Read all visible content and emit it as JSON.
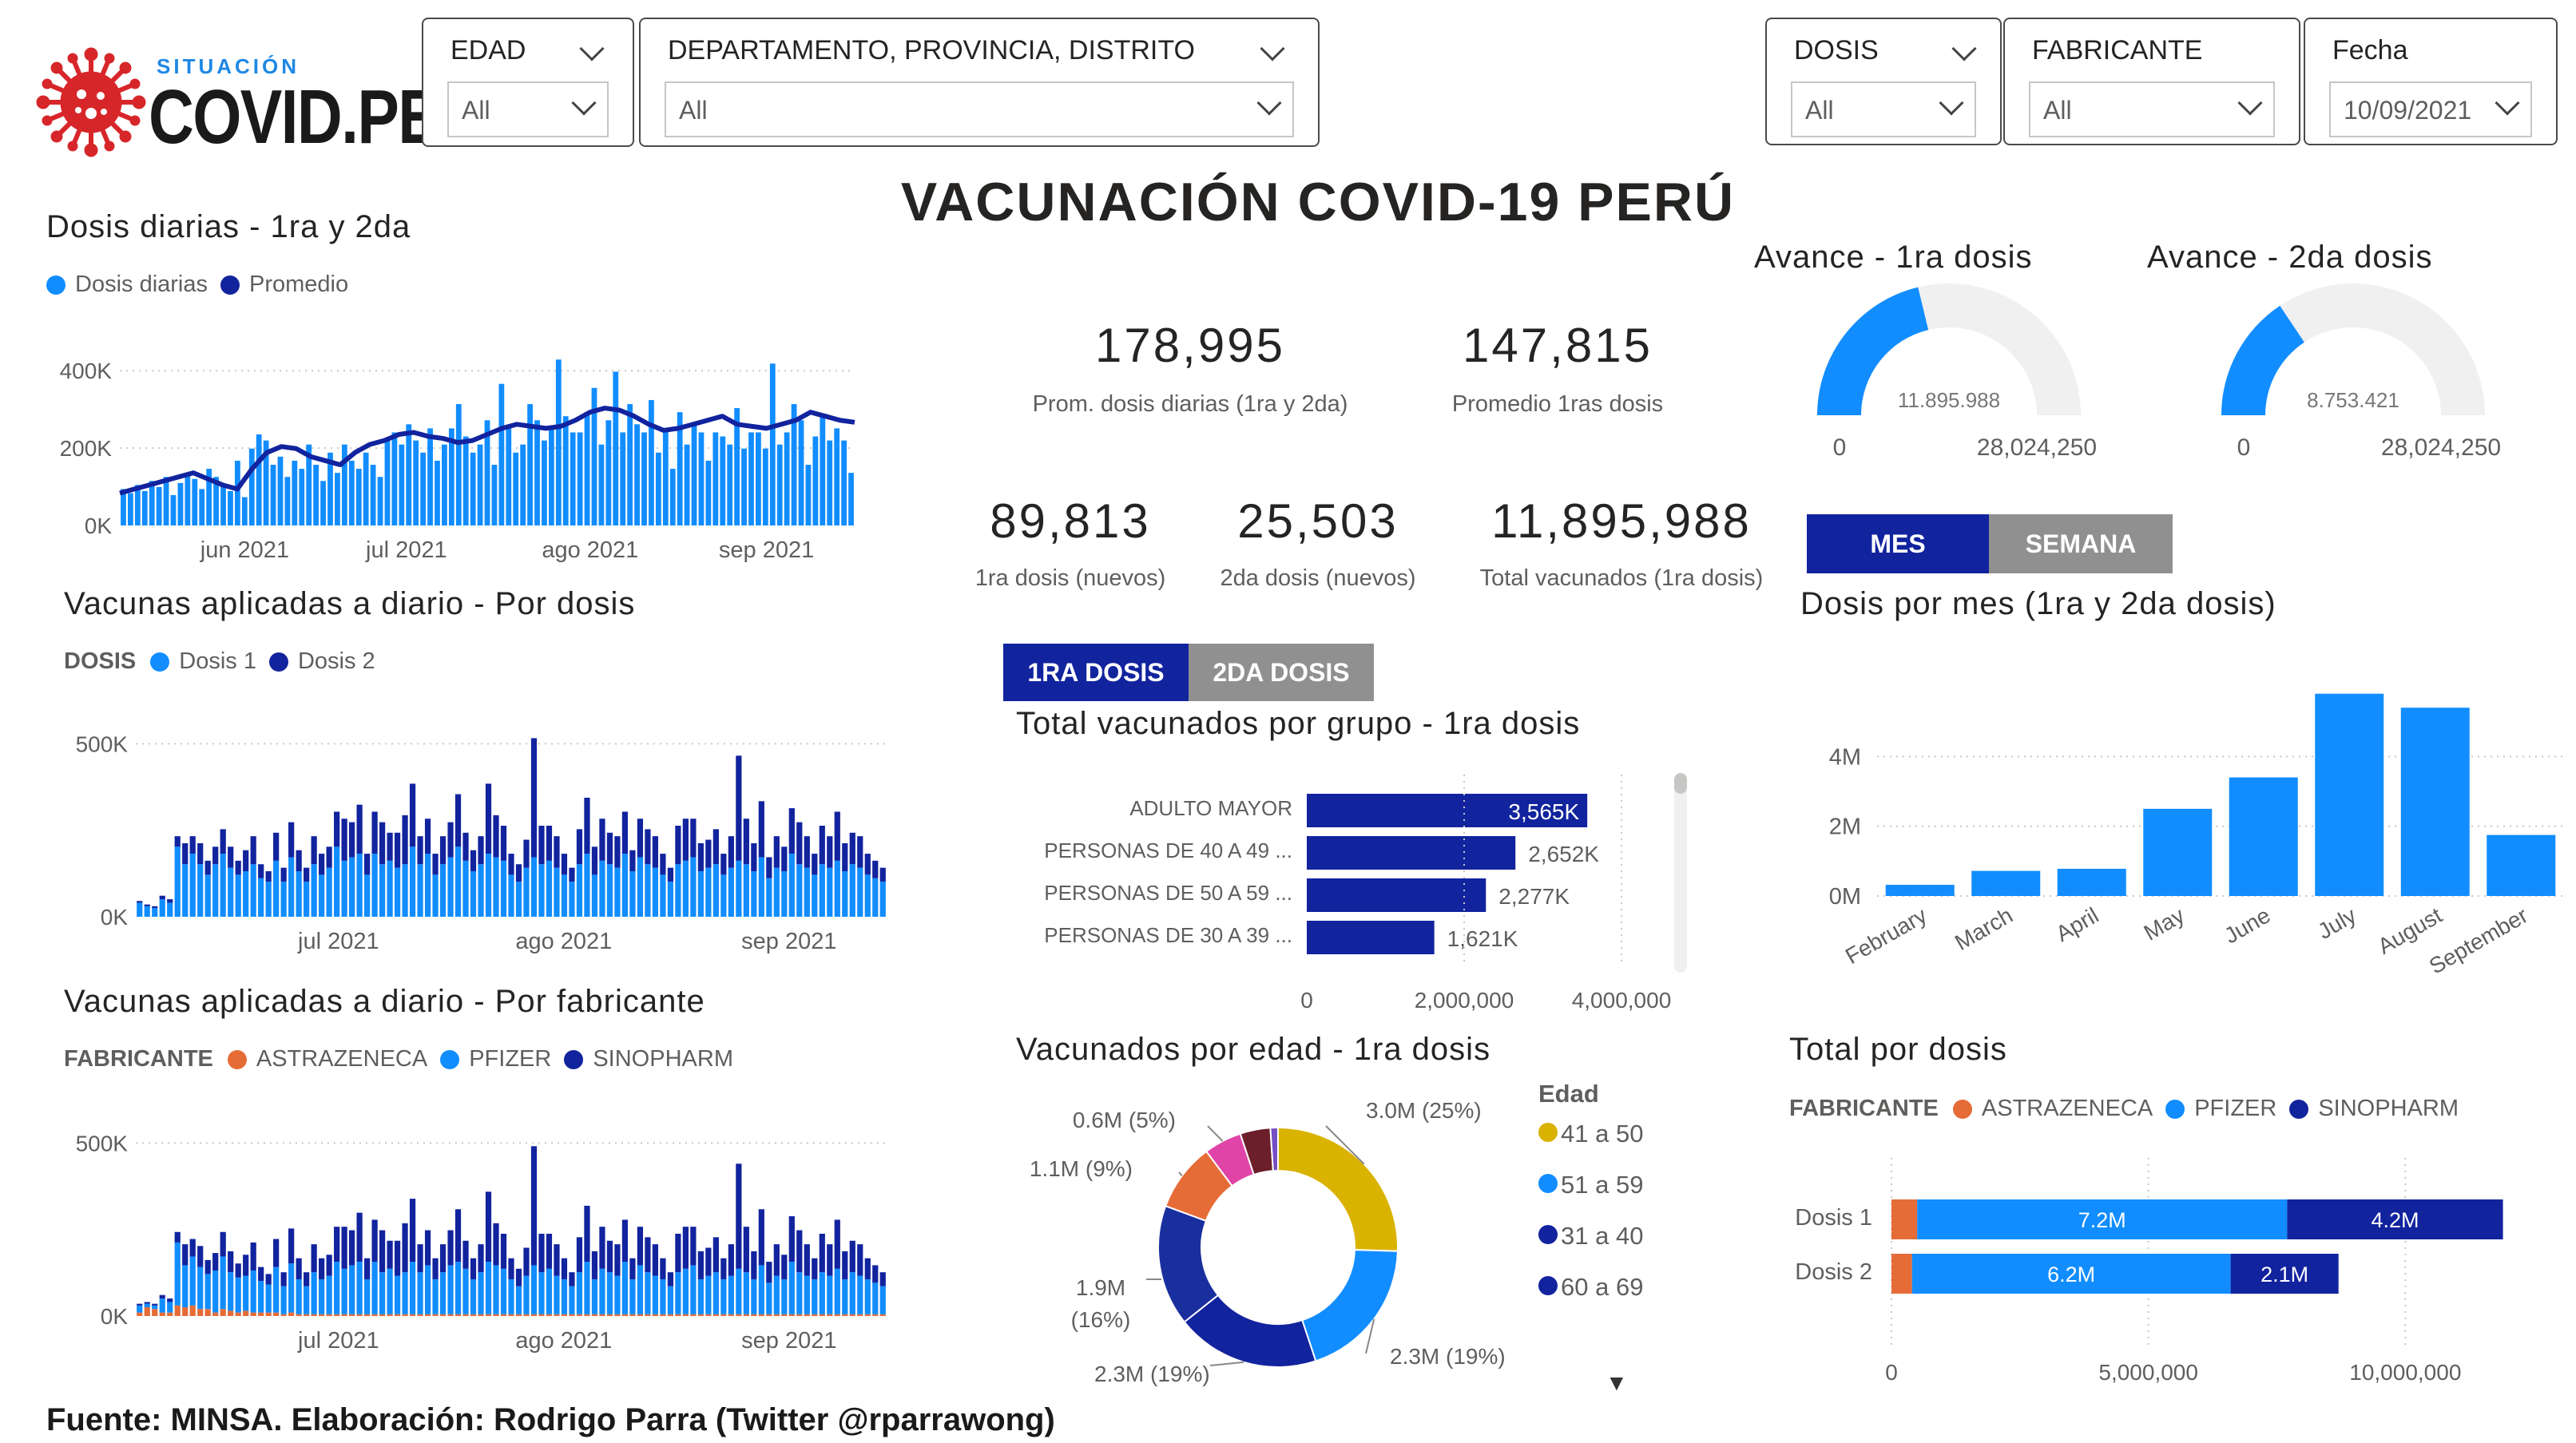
{
  "logo": {
    "top": "SITUACIÓN",
    "main": "COVID.PE"
  },
  "slicers": {
    "edad": {
      "label": "EDAD",
      "value": "All"
    },
    "region": {
      "label": "DEPARTAMENTO, PROVINCIA, DISTRITO",
      "value": "All"
    },
    "dosis": {
      "label": "DOSIS",
      "value": "All"
    },
    "fabricante": {
      "label": "FABRICANTE",
      "value": "All"
    },
    "fecha": {
      "label": "Fecha",
      "value": "10/09/2021"
    }
  },
  "main_title": "VACUNACIÓN COVID-19 PERÚ",
  "kpis": [
    {
      "value": "178,995",
      "label": "Prom. dosis diarias (1ra y 2da)"
    },
    {
      "value": "147,815",
      "label": "Promedio 1ras dosis"
    },
    {
      "value": "89,813",
      "label": "1ra dosis (nuevos)"
    },
    {
      "value": "25,503",
      "label": "2da dosis (nuevos)"
    },
    {
      "value": "11,895,988",
      "label": "Total vacunados (1ra dosis)"
    }
  ],
  "tabs_dosis": {
    "first": "1RA DOSIS",
    "second": "2DA DOSIS"
  },
  "tabs_periodo": {
    "mes": "MES",
    "semana": "SEMANA"
  },
  "colors": {
    "light_blue": "#118DFF",
    "dark_blue": "#12239E",
    "orange": "#E66C37",
    "gold": "#D9B300",
    "magenta": "#E044A7",
    "maroon": "#744EC2",
    "gauge_bg": "#F0F0F0",
    "tab_active": "#12239E",
    "tab_inactive": "#909090"
  },
  "footer": "Fuente: MINSA. Elaboración: Rodrigo Parra (Twitter @rparrawong)",
  "scroll_arrow": "▼",
  "chart_data": [
    {
      "id": "dosis_diarias",
      "type": "bar",
      "title": "Dosis diarias - 1ra y 2da",
      "legend": [
        "Dosis diarias",
        "Promedio"
      ],
      "yticks": [
        "0K",
        "200K",
        "400K"
      ],
      "ylim": [
        0,
        450000
      ],
      "xticks": [
        "jun 2021",
        "jul 2021",
        "ago 2021",
        "sep 2021"
      ],
      "series": [
        {
          "name": "Dosis diarias",
          "values": [
            90000,
            80000,
            100000,
            85000,
            110000,
            95000,
            120000,
            75000,
            105000,
            130000,
            115000,
            90000,
            140000,
            120000,
            100000,
            85000,
            160000,
            70000,
            190000,
            225000,
            210000,
            150000,
            170000,
            120000,
            160000,
            140000,
            200000,
            150000,
            110000,
            180000,
            130000,
            200000,
            160000,
            140000,
            180000,
            150000,
            120000,
            210000,
            230000,
            200000,
            250000,
            210000,
            180000,
            240000,
            160000,
            200000,
            240000,
            300000,
            220000,
            180000,
            200000,
            260000,
            150000,
            350000,
            240000,
            180000,
            200000,
            300000,
            260000,
            210000,
            240000,
            410000,
            270000,
            230000,
            230000,
            280000,
            340000,
            200000,
            260000,
            380000,
            230000,
            300000,
            250000,
            230000,
            310000,
            180000,
            240000,
            140000,
            280000,
            200000,
            250000,
            230000,
            160000,
            230000,
            220000,
            200000,
            290000,
            190000,
            230000,
            230000,
            190000,
            400000,
            200000,
            230000,
            300000,
            260000,
            150000,
            220000,
            270000,
            210000,
            240000,
            210000,
            130000
          ],
          "type": "bar"
        },
        {
          "name": "Promedio",
          "values": [
            80000,
            90000,
            100000,
            110000,
            120000,
            130000,
            115000,
            100000,
            90000,
            140000,
            180000,
            195000,
            190000,
            170000,
            160000,
            150000,
            180000,
            200000,
            210000,
            225000,
            230000,
            220000,
            215000,
            205000,
            210000,
            225000,
            240000,
            250000,
            245000,
            240000,
            245000,
            260000,
            280000,
            290000,
            285000,
            270000,
            250000,
            235000,
            240000,
            250000,
            260000,
            270000,
            250000,
            245000,
            240000,
            250000,
            260000,
            280000,
            270000,
            260000,
            255000
          ],
          "type": "line"
        }
      ]
    },
    {
      "id": "por_dosis",
      "type": "bar",
      "title": "Vacunas aplicadas a diario - Por dosis",
      "legend_title": "DOSIS",
      "legend": [
        "Dosis 1",
        "Dosis 2"
      ],
      "yticks": [
        "0K",
        "500K"
      ],
      "ylim": [
        0,
        520000
      ],
      "xticks": [
        "jul 2021",
        "ago 2021",
        "sep 2021"
      ],
      "series": [
        {
          "name": "Dosis 1",
          "values": [
            40000,
            30000,
            25000,
            50000,
            40000,
            200000,
            150000,
            180000,
            150000,
            120000,
            150000,
            180000,
            140000,
            120000,
            130000,
            150000,
            110000,
            100000,
            160000,
            100000,
            170000,
            130000,
            100000,
            150000,
            120000,
            140000,
            200000,
            160000,
            170000,
            180000,
            120000,
            180000,
            150000,
            160000,
            140000,
            150000,
            200000,
            150000,
            180000,
            120000,
            150000,
            170000,
            200000,
            160000,
            130000,
            150000,
            180000,
            170000,
            160000,
            120000,
            100000,
            140000,
            170000,
            150000,
            160000,
            140000,
            120000,
            100000,
            150000,
            180000,
            120000,
            160000,
            150000,
            140000,
            180000,
            130000,
            170000,
            150000,
            140000,
            120000,
            100000,
            150000,
            160000,
            170000,
            130000,
            140000,
            150000,
            120000,
            140000,
            160000,
            150000,
            130000,
            170000,
            110000,
            140000,
            130000,
            180000,
            150000,
            140000,
            120000,
            150000,
            140000,
            160000,
            130000,
            150000,
            140000,
            120000,
            110000,
            100000
          ]
        },
        {
          "name": "Dosis 2",
          "values": [
            5000,
            5000,
            5000,
            10000,
            10000,
            30000,
            60000,
            50000,
            60000,
            40000,
            50000,
            70000,
            60000,
            40000,
            60000,
            80000,
            40000,
            30000,
            80000,
            40000,
            100000,
            60000,
            40000,
            80000,
            60000,
            60000,
            100000,
            120000,
            100000,
            140000,
            60000,
            120000,
            120000,
            80000,
            100000,
            140000,
            180000,
            80000,
            100000,
            60000,
            80000,
            100000,
            150000,
            80000,
            60000,
            80000,
            200000,
            120000,
            100000,
            60000,
            50000,
            80000,
            340000,
            110000,
            100000,
            90000,
            60000,
            40000,
            100000,
            160000,
            80000,
            120000,
            90000,
            90000,
            120000,
            60000,
            110000,
            100000,
            90000,
            60000,
            40000,
            110000,
            120000,
            110000,
            80000,
            80000,
            100000,
            60000,
            90000,
            300000,
            130000,
            80000,
            160000,
            60000,
            90000,
            70000,
            130000,
            120000,
            90000,
            60000,
            110000,
            90000,
            140000,
            80000,
            90000,
            90000,
            60000,
            50000,
            40000
          ]
        }
      ]
    },
    {
      "id": "por_fabricante",
      "type": "bar",
      "title": "Vacunas aplicadas a diario - Por fabricante",
      "legend_title": "FABRICANTE",
      "legend": [
        "ASTRAZENECA",
        "PFIZER",
        "SINOPHARM"
      ],
      "yticks": [
        "0K",
        "500K"
      ],
      "ylim": [
        0,
        520000
      ],
      "xticks": [
        "jul 2021",
        "ago 2021",
        "sep 2021"
      ],
      "series": [
        {
          "name": "ASTRAZENECA",
          "values": [
            10000,
            25000,
            20000,
            10000,
            10000,
            30000,
            25000,
            30000,
            20000,
            20000,
            10000,
            20000,
            15000,
            10000,
            15000,
            10000,
            10000,
            10000,
            10000,
            5000,
            10000,
            5000,
            5000,
            5000,
            5000,
            5000,
            5000,
            5000,
            5000,
            5000,
            5000,
            5000,
            5000,
            5000,
            5000,
            5000,
            5000,
            5000,
            5000,
            5000,
            5000,
            5000,
            5000,
            5000,
            5000,
            5000,
            5000,
            5000,
            5000,
            5000,
            5000,
            5000,
            5000,
            5000,
            5000,
            5000,
            5000,
            5000,
            5000,
            5000,
            5000,
            5000,
            5000,
            5000,
            5000,
            5000,
            5000,
            5000,
            5000,
            5000,
            5000,
            5000,
            5000,
            5000,
            5000,
            5000,
            5000,
            5000,
            5000,
            5000,
            5000,
            5000,
            5000,
            5000,
            5000,
            5000,
            5000,
            5000,
            5000,
            5000,
            5000,
            5000,
            5000,
            5000,
            5000,
            5000,
            5000,
            5000,
            5000
          ]
        },
        {
          "name": "PFIZER",
          "values": [
            20000,
            10000,
            10000,
            40000,
            30000,
            180000,
            120000,
            140000,
            120000,
            100000,
            120000,
            150000,
            110000,
            100000,
            100000,
            120000,
            90000,
            80000,
            130000,
            80000,
            140000,
            100000,
            80000,
            120000,
            100000,
            110000,
            150000,
            130000,
            140000,
            150000,
            100000,
            150000,
            120000,
            130000,
            110000,
            120000,
            150000,
            120000,
            140000,
            100000,
            120000,
            140000,
            150000,
            130000,
            100000,
            120000,
            150000,
            140000,
            130000,
            100000,
            80000,
            110000,
            140000,
            120000,
            130000,
            110000,
            100000,
            80000,
            120000,
            150000,
            100000,
            130000,
            120000,
            110000,
            150000,
            100000,
            140000,
            120000,
            110000,
            100000,
            80000,
            120000,
            130000,
            140000,
            100000,
            110000,
            120000,
            100000,
            110000,
            130000,
            120000,
            100000,
            140000,
            90000,
            110000,
            100000,
            150000,
            120000,
            110000,
            100000,
            120000,
            110000,
            130000,
            100000,
            120000,
            110000,
            100000,
            90000,
            80000
          ]
        },
        {
          "name": "SINOPHARM",
          "values": [
            5000,
            5000,
            5000,
            10000,
            10000,
            30000,
            60000,
            50000,
            60000,
            40000,
            50000,
            70000,
            60000,
            40000,
            60000,
            80000,
            40000,
            30000,
            80000,
            40000,
            100000,
            60000,
            40000,
            80000,
            60000,
            60000,
            100000,
            120000,
            100000,
            140000,
            60000,
            120000,
            120000,
            80000,
            100000,
            140000,
            180000,
            80000,
            100000,
            60000,
            80000,
            100000,
            150000,
            80000,
            60000,
            80000,
            200000,
            120000,
            100000,
            60000,
            50000,
            80000,
            340000,
            110000,
            100000,
            90000,
            60000,
            40000,
            100000,
            160000,
            80000,
            120000,
            90000,
            90000,
            120000,
            60000,
            110000,
            100000,
            90000,
            60000,
            40000,
            110000,
            120000,
            110000,
            80000,
            80000,
            100000,
            60000,
            90000,
            300000,
            130000,
            80000,
            160000,
            60000,
            90000,
            70000,
            130000,
            120000,
            90000,
            60000,
            110000,
            90000,
            140000,
            80000,
            90000,
            90000,
            60000,
            50000,
            40000
          ]
        }
      ]
    },
    {
      "id": "avance_1ra",
      "type": "gauge",
      "title": "Avance - 1ra dosis",
      "value": 11895988,
      "value_label": "11.895.988",
      "min_label": "0",
      "max_label": "28,024,250",
      "max": 28024250
    },
    {
      "id": "avance_2da",
      "type": "gauge",
      "title": "Avance - 2da dosis",
      "value": 8753421,
      "value_label": "8.753.421",
      "min_label": "0",
      "max_label": "28,024,250",
      "max": 28024250
    },
    {
      "id": "grupo",
      "type": "bar",
      "orientation": "horizontal",
      "title": "Total vacunados por grupo - 1ra dosis",
      "categories": [
        "ADULTO MAYOR",
        "PERSONAS DE 40 A 49 ...",
        "PERSONAS DE 50 A 59 ...",
        "PERSONAS DE 30 A 39 ..."
      ],
      "values": [
        3565000,
        2652000,
        2277000,
        1621000
      ],
      "data_labels": [
        "3,565K",
        "2,652K",
        "2,277K",
        "1,621K"
      ],
      "xticks": [
        "0",
        "2,000,000",
        "4,000,000"
      ],
      "xlim": [
        0,
        4000000
      ]
    },
    {
      "id": "edad",
      "type": "pie",
      "title": "Vacunados por edad - 1ra dosis",
      "legend_title": "Edad",
      "legend": [
        "41 a 50",
        "51 a 59",
        "31 a 40",
        "60 a 69"
      ],
      "slices": [
        {
          "label": "3.0M (25%)",
          "value": 25,
          "color": "#D9B300"
        },
        {
          "label": "2.3M (19%)",
          "value": 19,
          "color": "#118DFF"
        },
        {
          "label": "2.3M (19%)",
          "value": 19,
          "color": "#12239E"
        },
        {
          "label": "1.9M (16%)",
          "value": 16,
          "color": "#1A2F9E"
        },
        {
          "label": "1.1M (9%)",
          "value": 9,
          "color": "#E66C37"
        },
        {
          "label": "0.6M (5%)",
          "value": 5,
          "color": "#E044A7"
        },
        {
          "label": "",
          "value": 4,
          "color": "#6B1F2A"
        },
        {
          "label": "",
          "value": 1,
          "color": "#744EC2"
        }
      ],
      "label_lines": [
        "1.9M",
        "(16%)"
      ]
    },
    {
      "id": "por_mes",
      "type": "bar",
      "title": "Dosis por mes (1ra y 2da dosis)",
      "categories": [
        "February",
        "March",
        "April",
        "May",
        "June",
        "July",
        "August",
        "September"
      ],
      "values": [
        320000,
        720000,
        780000,
        2500000,
        3400000,
        5800000,
        5400000,
        1750000
      ],
      "yticks": [
        "0M",
        "2M",
        "4M"
      ],
      "ylim": [
        0,
        6000000
      ]
    },
    {
      "id": "total_dosis",
      "type": "bar",
      "orientation": "horizontal",
      "stacked": true,
      "title": "Total por dosis",
      "legend_title": "FABRICANTE",
      "legend": [
        "ASTRAZENECA",
        "PFIZER",
        "SINOPHARM"
      ],
      "categories": [
        "Dosis 1",
        "Dosis 2"
      ],
      "series": [
        {
          "name": "ASTRAZENECA",
          "values": [
            500000,
            400000
          ]
        },
        {
          "name": "PFIZER",
          "values": [
            7200000,
            6200000
          ],
          "labels": [
            "7.2M",
            "6.2M"
          ]
        },
        {
          "name": "SINOPHARM",
          "values": [
            4200000,
            2100000
          ],
          "labels": [
            "4.2M",
            "2.1M"
          ]
        }
      ],
      "xticks": [
        "0",
        "5,000,000",
        "10,000,000"
      ],
      "xlim": [
        0,
        12000000
      ]
    }
  ]
}
